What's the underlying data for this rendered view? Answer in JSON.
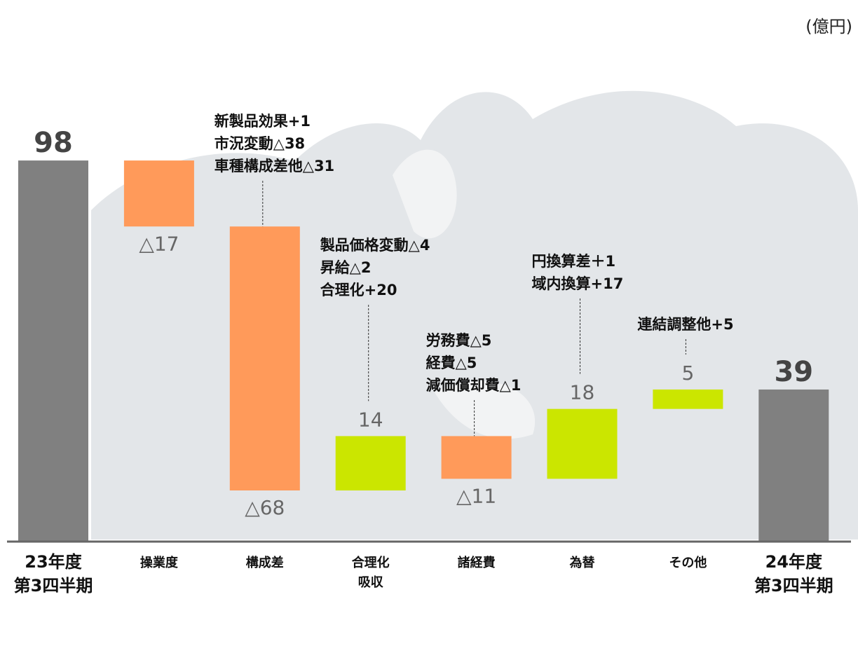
{
  "chart_data": {
    "type": "waterfall",
    "unit": "(億円)",
    "categories": [
      "23年度\n第3四半期",
      "操業度",
      "構成差",
      "合理化\n吸収",
      "諸経費",
      "為替",
      "その他",
      "24年度\n第3四半期"
    ],
    "values": [
      98,
      -17,
      -68,
      14,
      -11,
      18,
      5,
      39
    ],
    "value_labels": [
      "98",
      "△17",
      "△68",
      "14",
      "△11",
      "18",
      "5",
      "39"
    ],
    "totals": [
      true,
      false,
      false,
      false,
      false,
      false,
      false,
      true
    ],
    "total_color": "#808080",
    "increase_color": "#cbe600",
    "decrease_color": "#ff9a5a",
    "ylim": [
      0,
      100
    ],
    "annotations": [
      null,
      null,
      [
        "新製品効果+1",
        "市況変動△38",
        "車種構成差他△31"
      ],
      [
        "製品価格変動△4",
        "昇給△2",
        "合理化+20"
      ],
      [
        "労務費△5",
        "経費△5",
        "減価償却費△1"
      ],
      [
        "円換算差＋1",
        "域内換算+17"
      ],
      [
        "連結調整他+5"
      ],
      null
    ]
  }
}
